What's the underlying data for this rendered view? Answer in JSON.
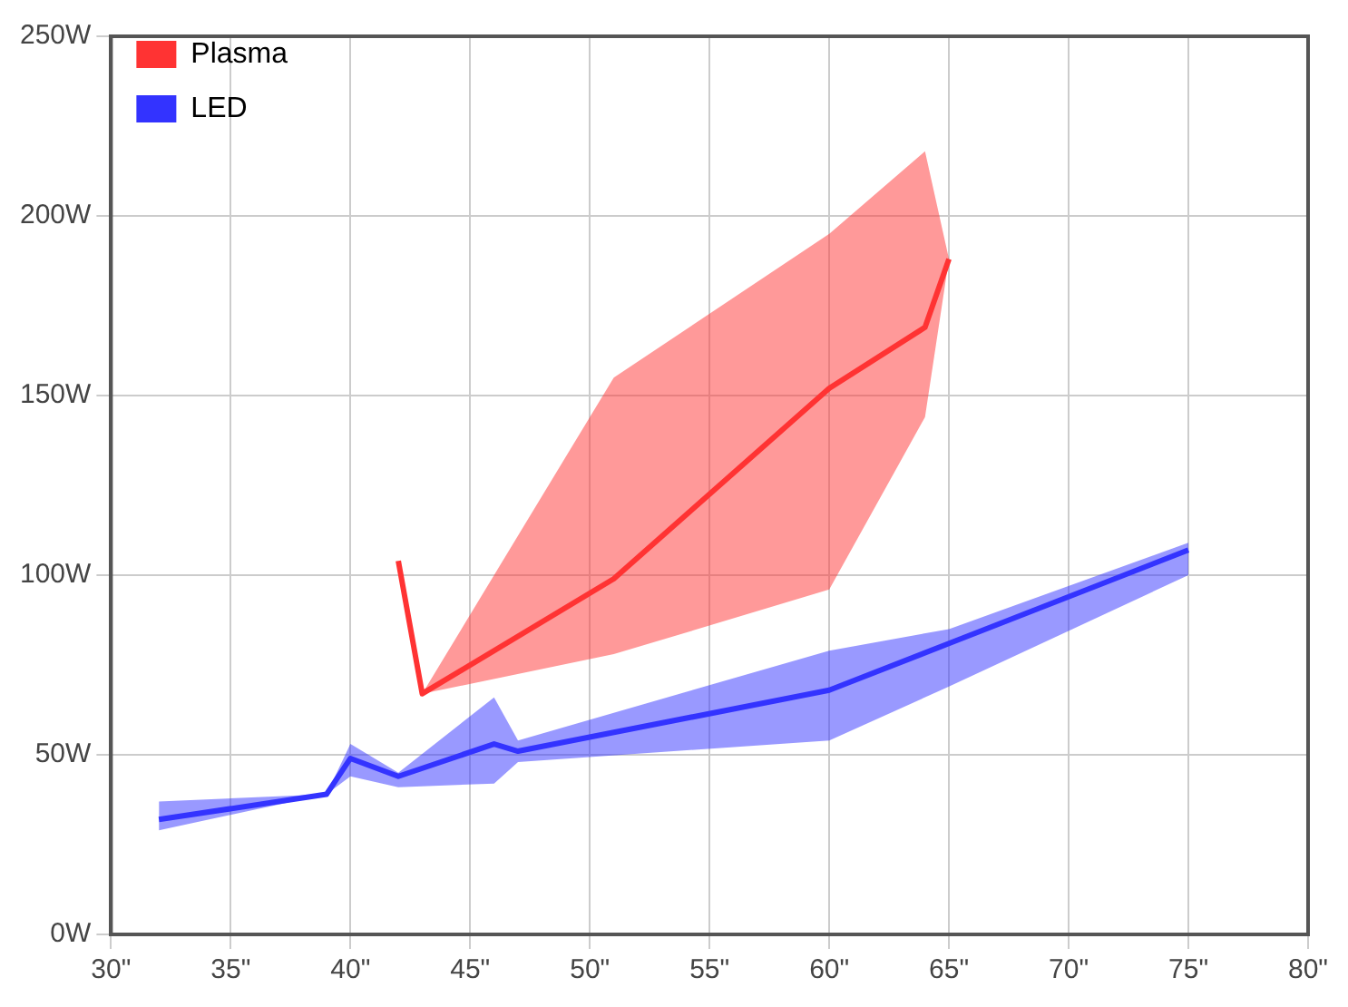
{
  "chart_data": {
    "type": "line",
    "xlim": [
      30,
      80
    ],
    "ylim": [
      0,
      250
    ],
    "xticks": [
      {
        "value": 30,
        "label": "30\""
      },
      {
        "value": 35,
        "label": "35\""
      },
      {
        "value": 40,
        "label": "40\""
      },
      {
        "value": 45,
        "label": "45\""
      },
      {
        "value": 50,
        "label": "50\""
      },
      {
        "value": 55,
        "label": "55\""
      },
      {
        "value": 60,
        "label": "60\""
      },
      {
        "value": 65,
        "label": "65\""
      },
      {
        "value": 70,
        "label": "70\""
      },
      {
        "value": 75,
        "label": "75\""
      },
      {
        "value": 80,
        "label": "80\""
      }
    ],
    "yticks": [
      {
        "value": 0,
        "label": "0W"
      },
      {
        "value": 50,
        "label": "50W"
      },
      {
        "value": 100,
        "label": "100W"
      },
      {
        "value": 150,
        "label": "150W"
      },
      {
        "value": 200,
        "label": "200W"
      },
      {
        "value": 250,
        "label": "250W"
      }
    ],
    "grid": true,
    "legend": "top left",
    "marker": "none",
    "line_style": "solid",
    "series": [
      {
        "name": "Plasma",
        "color": "#ff3333",
        "x": [
          42,
          43,
          51,
          60,
          64,
          65
        ],
        "values": [
          104,
          67,
          99,
          152,
          169,
          188
        ],
        "lower": [
          null,
          67,
          78,
          96,
          144,
          188
        ],
        "upper": [
          null,
          67,
          155,
          195,
          218,
          188
        ]
      },
      {
        "name": "LED",
        "color": "#3333ff",
        "x": [
          32,
          39,
          40,
          42,
          46,
          47,
          60,
          65,
          75
        ],
        "values": [
          32,
          39,
          49,
          44,
          53,
          51,
          68,
          81,
          107
        ],
        "lower": [
          29,
          39,
          44,
          41,
          42,
          48,
          54,
          69,
          100
        ],
        "upper": [
          37,
          39,
          53,
          45,
          66,
          54,
          79,
          85,
          109
        ]
      }
    ]
  }
}
